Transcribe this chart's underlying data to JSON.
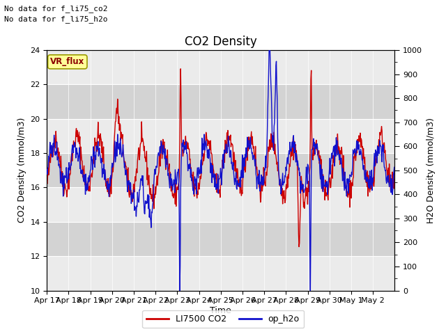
{
  "title": "CO2 Density",
  "xlabel": "Time",
  "ylabel_left": "CO2 Density (mmol/m3)",
  "ylabel_right": "H2O Density (mmol/m3)",
  "ylim_left": [
    10,
    24
  ],
  "ylim_right": [
    0,
    1000
  ],
  "yticks_left": [
    10,
    12,
    14,
    16,
    18,
    20,
    22,
    24
  ],
  "yticks_right": [
    0,
    100,
    200,
    300,
    400,
    500,
    600,
    700,
    800,
    900,
    1000
  ],
  "top_text_line1": "No data for f_li75_co2",
  "top_text_line2": "No data for f_li75_h2o",
  "vr_flux_label": "VR_flux",
  "legend_entries": [
    "LI7500 CO2",
    "op_h2o"
  ],
  "legend_colors": [
    "#cc0000",
    "#1111cc"
  ],
  "line_color_red": "#cc0000",
  "line_color_blue": "#1111cc",
  "background_color": "#ffffff",
  "plot_bg_color": "#e0e0e0",
  "band_color_light": "#ebebeb",
  "band_color_dark": "#d3d3d3",
  "xtick_labels": [
    "Apr 17",
    "Apr 18",
    "Apr 19",
    "Apr 20",
    "Apr 21",
    "Apr 22",
    "Apr 23",
    "Apr 24",
    "Apr 25",
    "Apr 26",
    "Apr 27",
    "Apr 28",
    "Apr 29",
    "Apr 30",
    "May 1",
    "May 2"
  ],
  "n_days": 16,
  "pts_per_day": 48,
  "seed": 42
}
